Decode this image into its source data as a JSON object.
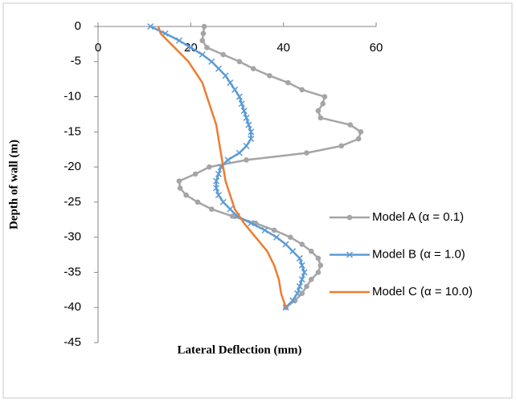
{
  "chart_data": {
    "type": "line",
    "x_label": "Lateral Deflection (mm)",
    "y_label": "Depth of wall (m)",
    "xlim": [
      0,
      60
    ],
    "xticks": [
      0,
      20,
      40,
      60
    ],
    "ylim": [
      -45,
      0
    ],
    "yticks": [
      0,
      -5,
      -10,
      -15,
      -20,
      -25,
      -30,
      -35,
      -40,
      -45
    ],
    "grid": false,
    "legend": "right",
    "series": [
      {
        "name": "Model A (α = 0.1)",
        "color": "#a5a5a5",
        "marker": "circle",
        "x": [
          22.9,
          22.7,
          22.5,
          23.5,
          27,
          30.5,
          33.5,
          37,
          41,
          44,
          48.9,
          48.5,
          47.5,
          48,
          54.4,
          56.7,
          56.2,
          52.5,
          45,
          32,
          24,
          21,
          17.5,
          17.7,
          19,
          21.5,
          24.5,
          29,
          34,
          38,
          41.5,
          44,
          46,
          47.5,
          48,
          47.5,
          46,
          45,
          44,
          42.5,
          40.5
        ],
        "values": [
          0,
          -1,
          -2,
          -3,
          -4,
          -5,
          -6,
          -7,
          -8,
          -9,
          -10,
          -11,
          -12,
          -13,
          -14,
          -15,
          -16,
          -17,
          -18,
          -19,
          -20,
          -21,
          -22,
          -23,
          -24,
          -25,
          -26,
          -27,
          -28,
          -29,
          -30,
          -31,
          -32,
          -33,
          -34,
          -35,
          -36,
          -37,
          -38,
          -39,
          -40
        ]
      },
      {
        "name": "Model B (α = 1.0)",
        "color": "#5b9bd5",
        "marker": "x",
        "x": [
          11.3,
          14.5,
          17.5,
          20,
          22.5,
          24.5,
          26,
          27.5,
          28.5,
          29.5,
          30.5,
          31,
          31.5,
          32,
          32.5,
          33,
          33,
          32,
          30.5,
          28,
          26.5,
          26,
          25.5,
          25.5,
          26,
          27,
          28.5,
          30,
          33,
          36,
          38.5,
          40.5,
          42,
          43.5,
          44,
          44.5,
          44,
          43.5,
          43,
          42,
          40.5
        ],
        "values": [
          0,
          -1,
          -2,
          -3,
          -4,
          -5,
          -6,
          -7,
          -8,
          -9,
          -10,
          -11,
          -12,
          -13,
          -14,
          -15,
          -16,
          -17,
          -18,
          -19,
          -20,
          -21,
          -22,
          -23,
          -24,
          -25,
          -26,
          -27,
          -28,
          -29,
          -30,
          -31,
          -32,
          -33,
          -34,
          -35,
          -36,
          -37,
          -38,
          -39,
          -40
        ]
      },
      {
        "name": "Model C (α = 10.0)",
        "color": "#ed7d31",
        "marker": "none",
        "x": [
          13,
          13.5,
          15,
          16.5,
          18,
          19.5,
          20.5,
          21.5,
          22.5,
          23,
          23.5,
          24.5,
          25.5,
          26,
          26.5,
          27,
          27.5,
          28.5,
          29.5,
          31.5,
          34,
          36.5,
          38,
          39,
          39.5,
          40.5
        ],
        "values": [
          0,
          -1,
          -2,
          -3,
          -4,
          -5,
          -6,
          -7,
          -8,
          -9,
          -10,
          -12,
          -14,
          -16,
          -18,
          -20,
          -22,
          -24,
          -26,
          -28,
          -30,
          -32,
          -34,
          -36,
          -38,
          -40
        ]
      }
    ]
  }
}
